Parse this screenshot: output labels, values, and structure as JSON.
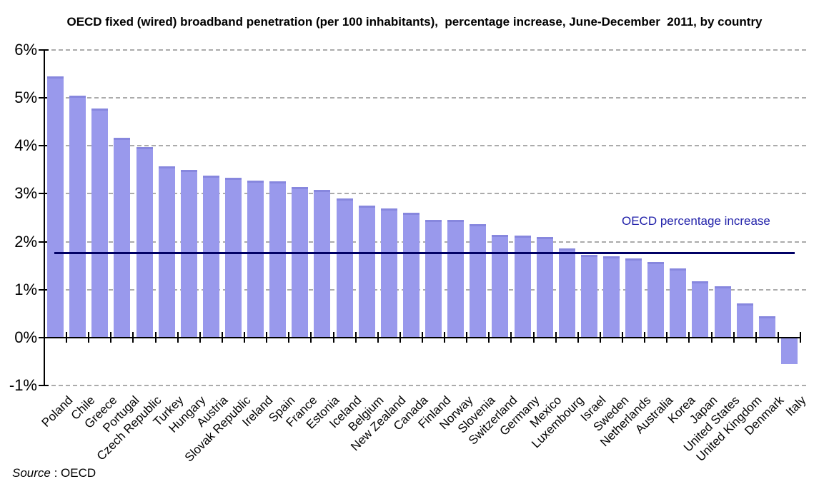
{
  "chart_data": {
    "type": "bar",
    "title": "OECD fixed (wired) broadband penetration (per 100 inhabitants),  percentage increase, June-December  2011, by country",
    "categories": [
      "Poland",
      "Chile",
      "Greece",
      "Portugal",
      "Czech Republic",
      "Turkey",
      "Hungary",
      "Austria",
      "Slovak Republic",
      "Ireland",
      "Spain",
      "France",
      "Estonia",
      "Iceland",
      "Belgium",
      "New Zealand",
      "Canada",
      "Finland",
      "Norway",
      "Slovenia",
      "Switzerland",
      "Germany",
      "Mexico",
      "Luxembourg",
      "Israel",
      "Sweden",
      "Netherlands",
      "Australia",
      "Korea",
      "Japan",
      "United States",
      "United Kingdom",
      "Denmark",
      "Italy"
    ],
    "values": [
      5.45,
      5.05,
      4.78,
      4.17,
      3.97,
      3.57,
      3.5,
      3.38,
      3.33,
      3.28,
      3.26,
      3.14,
      3.08,
      2.9,
      2.75,
      2.69,
      2.61,
      2.46,
      2.46,
      2.37,
      2.14,
      2.13,
      2.1,
      1.86,
      1.73,
      1.7,
      1.65,
      1.58,
      1.44,
      1.17,
      1.07,
      0.72,
      0.45,
      -0.6
    ],
    "xlabel": "",
    "ylabel": "",
    "ylim": [
      -1,
      6
    ],
    "yticks": [
      6,
      5,
      4,
      3,
      2,
      1,
      0,
      -1
    ],
    "ytick_labels": [
      "6%",
      "5%",
      "4%",
      "3%",
      "2%",
      "1%",
      "0%",
      "-1%"
    ],
    "grid": "horizontal-dashed",
    "legend_position": "none",
    "reference_line": {
      "label": "OECD percentage increase",
      "value": 1.76
    },
    "colors": {
      "bar": "#9999EC",
      "bar_top_edge": "#8787DE",
      "reference_line": "#000066",
      "reference_label": "#2222AA",
      "axis": "#000000",
      "gridline": "#8F8F8F",
      "background": "#FFFFFF"
    }
  },
  "source": {
    "italic": "Source",
    "rest": " : OECD"
  }
}
